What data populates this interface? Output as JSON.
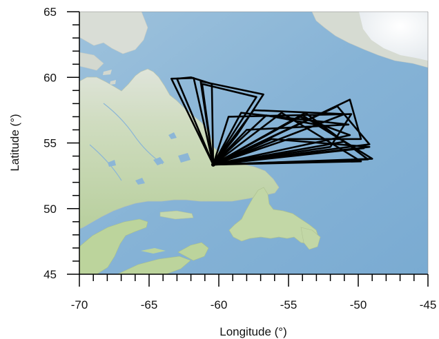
{
  "chart_data": {
    "type": "line",
    "xlabel": "Longitude (°)",
    "ylabel": "Latitude (°)",
    "xlim": [
      -70,
      -45
    ],
    "ylim": [
      45,
      65
    ],
    "x_ticks": [
      -70,
      -65,
      -60,
      -55,
      -50,
      -45
    ],
    "y_ticks": [
      45,
      50,
      55,
      60,
      65
    ],
    "x_tick_labels": [
      "-70",
      "-65",
      "-60",
      "-55",
      "-50",
      "-45"
    ],
    "y_tick_labels": [
      "45",
      "50",
      "55",
      "60",
      "65"
    ],
    "minor_tick_step": 1,
    "grid": false,
    "background": "shaded-relief basemap of Labrador Sea, Labrador, Quebec, Newfoundland, Gulf of St. Lawrence, Nova Scotia, southern Greenland",
    "track_color": "#000000",
    "origin": [
      -60.4,
      53.35
    ],
    "series": [
      {
        "x": [
          -60.4,
          -63.4,
          -61.8,
          -60.4
        ],
        "y": [
          53.35,
          59.9,
          59.95,
          53.35
        ]
      },
      {
        "x": [
          -60.4,
          -63.0,
          -62.0,
          -60.5,
          -60.4
        ],
        "y": [
          53.35,
          59.9,
          60.0,
          59.5,
          53.35
        ]
      },
      {
        "x": [
          -60.4,
          -61.3,
          -56.8,
          -58.7,
          -60.4
        ],
        "y": [
          53.35,
          59.7,
          58.7,
          55.6,
          53.35
        ]
      },
      {
        "x": [
          -60.4,
          -61.2,
          -57.3,
          -60.4
        ],
        "y": [
          53.35,
          59.5,
          58.5,
          53.35
        ]
      },
      {
        "x": [
          -60.4,
          -59.3,
          -50.5,
          -52.0,
          -60.4
        ],
        "y": [
          53.35,
          57.0,
          57.2,
          54.7,
          53.35
        ]
      },
      {
        "x": [
          -60.4,
          -58.4,
          -50.7,
          -58.0,
          -60.4
        ],
        "y": [
          53.35,
          57.3,
          56.4,
          56.0,
          53.35
        ]
      },
      {
        "x": [
          -60.4,
          -57.5,
          -51.0,
          -60.4
        ],
        "y": [
          53.35,
          57.5,
          57.2,
          53.35
        ]
      },
      {
        "x": [
          -60.4,
          -54.0,
          -49.0,
          -60.4
        ],
        "y": [
          53.35,
          57.1,
          53.8,
          53.35
        ]
      },
      {
        "x": [
          -60.4,
          -53.8,
          -49.3,
          -60.4
        ],
        "y": [
          53.35,
          57.3,
          53.75,
          53.35
        ]
      },
      {
        "x": [
          -60.4,
          -50.6,
          -49.8,
          -55.0,
          -60.4
        ],
        "y": [
          53.35,
          58.3,
          55.3,
          55.3,
          53.35
        ]
      },
      {
        "x": [
          -60.4,
          -51.5,
          -49.2,
          -60.4
        ],
        "y": [
          53.35,
          57.8,
          54.9,
          53.35
        ]
      },
      {
        "x": [
          -60.4,
          -54.2,
          -50.6,
          -60.4
        ],
        "y": [
          53.35,
          57.0,
          55.6,
          53.35
        ]
      },
      {
        "x": [
          -60.4,
          -56.6,
          -53.0,
          -51.0,
          -60.4
        ],
        "y": [
          53.35,
          57.1,
          56.4,
          55.1,
          53.35
        ]
      },
      {
        "x": [
          -60.4,
          -56.2,
          -49.2,
          -60.4
        ],
        "y": [
          53.35,
          55.3,
          54.7,
          53.35
        ]
      },
      {
        "x": [
          -60.4,
          -55.5,
          -49.8,
          -60.4
        ],
        "y": [
          53.35,
          57.3,
          53.6,
          53.35
        ]
      },
      {
        "x": [
          -60.4,
          -49.6,
          -60.4
        ],
        "y": [
          53.35,
          54.6,
          53.35
        ]
      }
    ]
  }
}
